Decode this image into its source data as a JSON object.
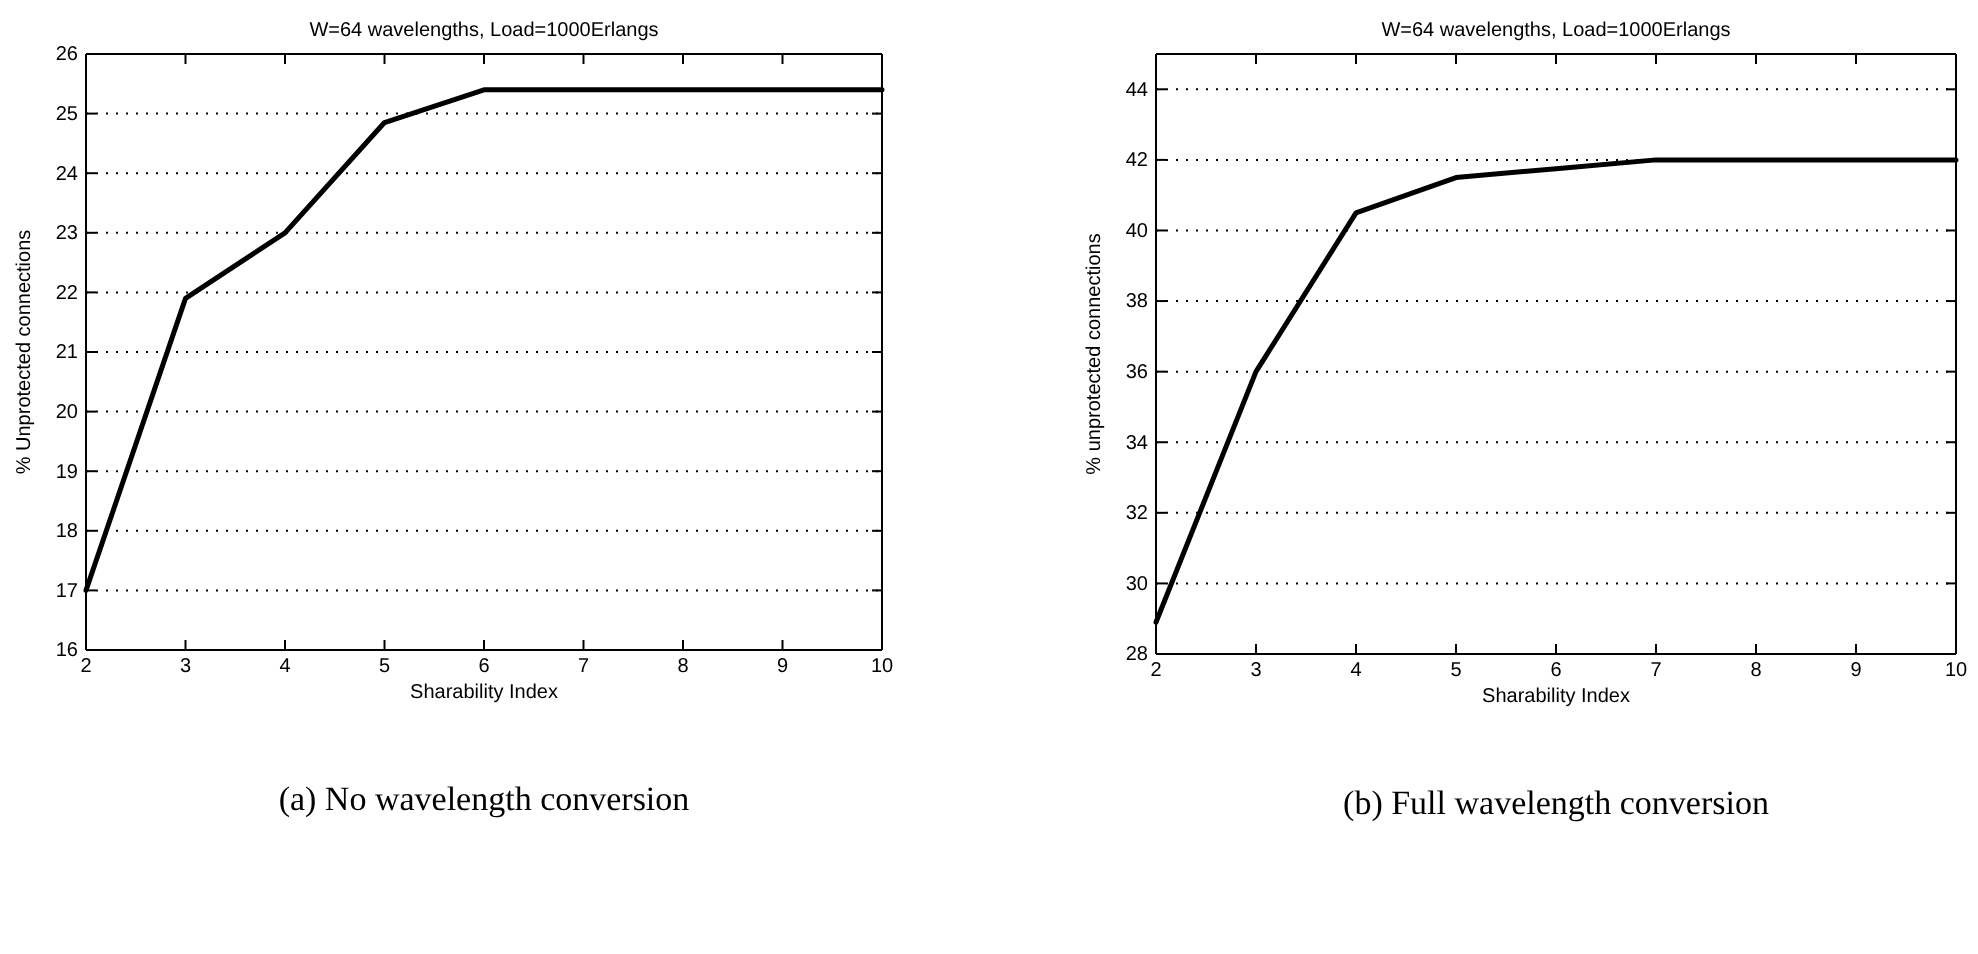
{
  "chart_data": [
    {
      "type": "line",
      "title": "W=64 wavelengths, Load=1000Erlangs",
      "xlabel": "Sharability Index",
      "ylabel": "% Unprotected connections",
      "annotations": [
        "(a) No wavelength conversion"
      ],
      "x": [
        2,
        3,
        4,
        5,
        6,
        7,
        8,
        9,
        10
      ],
      "series": [
        {
          "color": "#000000",
          "values": [
            17,
            21.9,
            23,
            24.85,
            25.4,
            25.4,
            25.4,
            25.4,
            25.4
          ]
        }
      ],
      "xlim": [
        2,
        10
      ],
      "xticks": [
        2,
        3,
        4,
        5,
        6,
        7,
        8,
        9,
        10
      ],
      "ylim": [
        16,
        26
      ],
      "yticks": [
        16,
        17,
        18,
        19,
        20,
        21,
        22,
        23,
        24,
        25,
        26
      ],
      "grid": "y",
      "line_style": "solid"
    },
    {
      "type": "line",
      "title": "W=64 wavelengths, Load=1000Erlangs",
      "xlabel": "Sharability Index",
      "ylabel": "% unprotected connections",
      "annotations": [
        "(b) Full wavelength conversion"
      ],
      "x": [
        2,
        3,
        4,
        5,
        6,
        7,
        8,
        9,
        10
      ],
      "series": [
        {
          "color": "#000000",
          "values": [
            28.9,
            36,
            40.5,
            41.5,
            41.75,
            42,
            42,
            42,
            42
          ]
        }
      ],
      "xlim": [
        2,
        10
      ],
      "xticks": [
        2,
        3,
        4,
        5,
        6,
        7,
        8,
        9,
        10
      ],
      "ylim": [
        28,
        45
      ],
      "yticks": [
        28,
        30,
        32,
        34,
        36,
        38,
        40,
        42,
        44
      ],
      "grid": "y",
      "line_style": "solid"
    }
  ]
}
